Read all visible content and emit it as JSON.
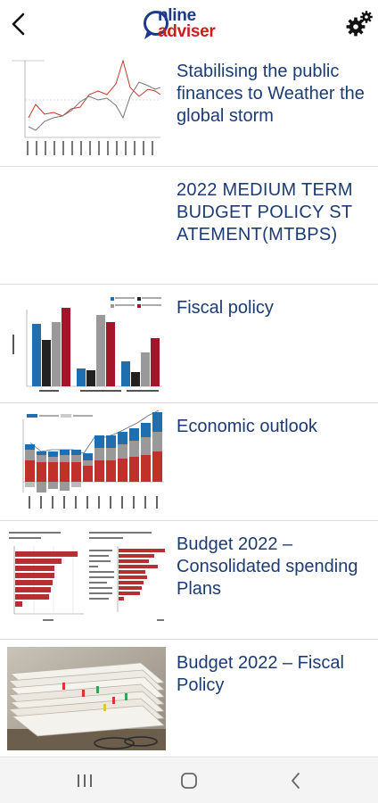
{
  "header": {
    "logo_line1": "nline",
    "logo_line2": "adviser"
  },
  "articles": [
    {
      "title": "Stabilising the public finances to Weather the global storm",
      "thumbnail": "line-chart"
    },
    {
      "title": "2022 MEDIUM TERM BUDGET POLICY ST ATEMENT(MTBPS)",
      "thumbnail": "none"
    },
    {
      "title": "Fiscal policy",
      "thumbnail": "bar-chart"
    },
    {
      "title": "Economic outlook",
      "thumbnail": "stacked-bar-chart"
    },
    {
      "title": "Budget 2022 – Consolidated spending Plans",
      "thumbnail": "horizontal-bar-charts"
    },
    {
      "title": "Budget 2022 – Fiscal Policy",
      "thumbnail": "paper-stack-photo"
    }
  ],
  "colors": {
    "title": "#1c3b73",
    "logo_blue": "#1d3a8a",
    "logo_red": "#d11a1a",
    "divider": "#dcdcdc",
    "navbar_bg": "#f4f4f4"
  },
  "navbar": {
    "recents_icon": "recents-icon",
    "home_icon": "home-icon",
    "back_icon": "back-icon"
  }
}
